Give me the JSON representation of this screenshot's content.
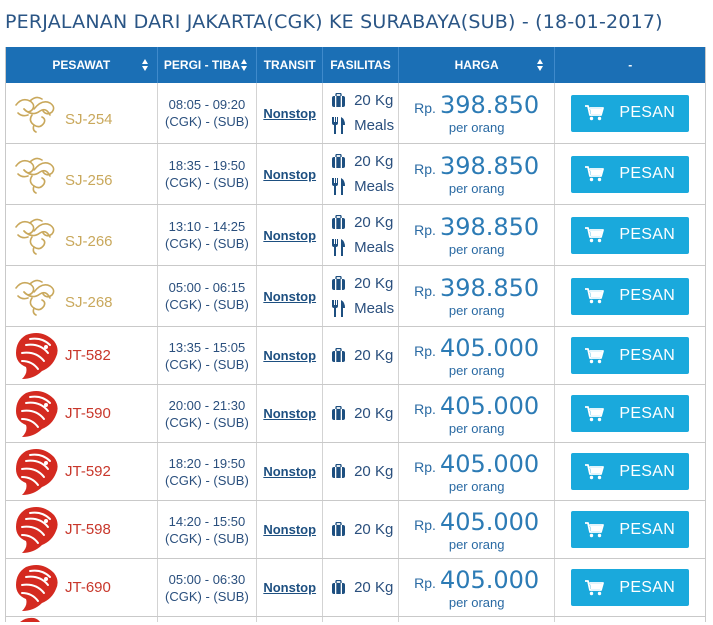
{
  "page": {
    "title": "PERJALANAN DARI JAKARTA(CGK) KE SURABAYA(SUB) - (18-01-2017)"
  },
  "table": {
    "headers": {
      "pesawat": "PESAWAT",
      "pergi_tiba": "PERGI - TIBA",
      "transit": "TRANSIT",
      "fasilitas": "FASILITAS",
      "harga": "HARGA",
      "action": "-"
    },
    "currency": "Rp.",
    "per_label": "per orang",
    "button_label": "PESAN",
    "rows": [
      {
        "airline": "sj",
        "logo": "sriwijaya-logo-icon",
        "code": "SJ-254",
        "depart_arrive": "08:05 - 09:20",
        "route": "(CGK) - (SUB)",
        "transit": "Nonstop",
        "baggage": "20 Kg",
        "meals": "Meals",
        "price": "398.850"
      },
      {
        "airline": "sj",
        "logo": "sriwijaya-logo-icon",
        "code": "SJ-256",
        "depart_arrive": "18:35 - 19:50",
        "route": "(CGK) - (SUB)",
        "transit": "Nonstop",
        "baggage": "20 Kg",
        "meals": "Meals",
        "price": "398.850"
      },
      {
        "airline": "sj",
        "logo": "sriwijaya-logo-icon",
        "code": "SJ-266",
        "depart_arrive": "13:10 - 14:25",
        "route": "(CGK) - (SUB)",
        "transit": "Nonstop",
        "baggage": "20 Kg",
        "meals": "Meals",
        "price": "398.850"
      },
      {
        "airline": "sj",
        "logo": "sriwijaya-logo-icon",
        "code": "SJ-268",
        "depart_arrive": "05:00 - 06:15",
        "route": "(CGK) - (SUB)",
        "transit": "Nonstop",
        "baggage": "20 Kg",
        "meals": "Meals",
        "price": "398.850"
      },
      {
        "airline": "jt",
        "logo": "lion-air-logo-icon",
        "code": "JT-582",
        "depart_arrive": "13:35 - 15:05",
        "route": "(CGK) - (SUB)",
        "transit": "Nonstop",
        "baggage": "20 Kg",
        "meals": "",
        "price": "405.000"
      },
      {
        "airline": "jt",
        "logo": "lion-air-logo-icon",
        "code": "JT-590",
        "depart_arrive": "20:00 - 21:30",
        "route": "(CGK) - (SUB)",
        "transit": "Nonstop",
        "baggage": "20 Kg",
        "meals": "",
        "price": "405.000"
      },
      {
        "airline": "jt",
        "logo": "lion-air-logo-icon",
        "code": "JT-592",
        "depart_arrive": "18:20 - 19:50",
        "route": "(CGK) - (SUB)",
        "transit": "Nonstop",
        "baggage": "20 Kg",
        "meals": "",
        "price": "405.000"
      },
      {
        "airline": "jt",
        "logo": "lion-air-logo-icon",
        "code": "JT-598",
        "depart_arrive": "14:20 - 15:50",
        "route": "(CGK) - (SUB)",
        "transit": "Nonstop",
        "baggage": "20 Kg",
        "meals": "",
        "price": "405.000"
      },
      {
        "airline": "jt",
        "logo": "lion-air-logo-icon",
        "code": "JT-690",
        "depart_arrive": "05:00 - 06:30",
        "route": "(CGK) - (SUB)",
        "transit": "Nonstop",
        "baggage": "20 Kg",
        "meals": "",
        "price": "405.000"
      }
    ]
  },
  "colors": {
    "header_bg": "#1b6fb5",
    "button_bg": "#1aa9dc",
    "sriwijaya_gold": "#c9a85c",
    "lion_red": "#d42a20",
    "title_blue": "#2a5585"
  }
}
